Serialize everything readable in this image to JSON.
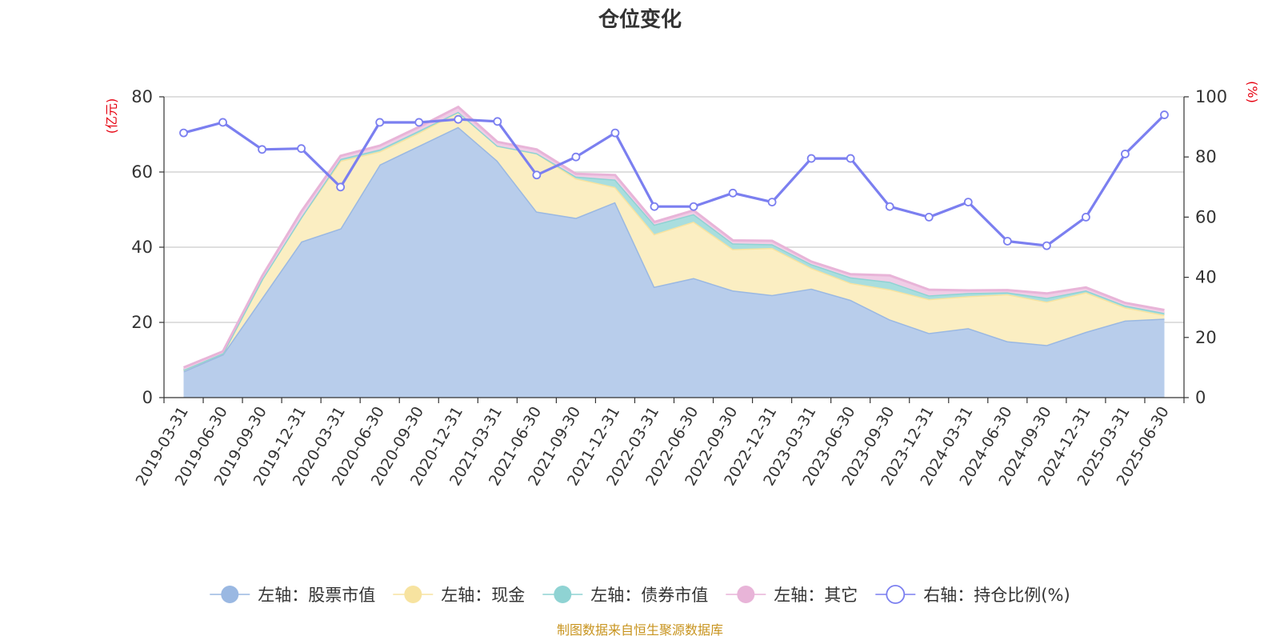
{
  "chart_data": {
    "type": "area",
    "title": "仓位变化",
    "left_axis_unit": "(亿元)",
    "right_axis_unit": "(%)",
    "source": "制图数据来自恒生聚源数据库",
    "categories": [
      "2019-03-31",
      "2019-06-30",
      "2019-09-30",
      "2019-12-31",
      "2020-03-31",
      "2020-06-30",
      "2020-09-30",
      "2020-12-31",
      "2021-03-31",
      "2021-06-30",
      "2021-09-30",
      "2021-12-31",
      "2022-03-31",
      "2022-06-30",
      "2022-09-30",
      "2022-12-31",
      "2023-03-31",
      "2023-06-30",
      "2023-09-30",
      "2023-12-31",
      "2024-03-31",
      "2024-06-30",
      "2024-09-30",
      "2024-12-31",
      "2025-03-31",
      "2025-06-30"
    ],
    "ylim_left": [
      0,
      80
    ],
    "yticks_left": [
      0,
      20,
      40,
      60,
      80
    ],
    "ylim_right": [
      0,
      100
    ],
    "yticks_right": [
      0,
      20,
      40,
      60,
      80,
      100
    ],
    "grid": true,
    "legend_position": "bottom",
    "series": [
      {
        "name": "左轴：股票市值",
        "axis": "left",
        "type": "area",
        "stack": true,
        "color": "#9ab8e2",
        "fill": "#b8cdeb",
        "values": [
          7.0,
          11.5,
          26.5,
          41.5,
          45.0,
          62.0,
          67.0,
          72.0,
          63.0,
          49.5,
          47.8,
          52.0,
          29.5,
          31.8,
          28.5,
          27.3,
          29.0,
          26.0,
          20.8,
          17.2,
          18.5,
          15.0,
          14.0,
          17.5,
          20.5,
          21.0
        ]
      },
      {
        "name": "左轴：现金",
        "axis": "left",
        "type": "area",
        "stack": true,
        "color": "#f7e3a0",
        "fill": "#fbeec2",
        "values": [
          0.4,
          0.3,
          5.0,
          6.5,
          18.0,
          3.5,
          3.5,
          4.0,
          4.0,
          15.5,
          10.5,
          4.0,
          14.0,
          15.0,
          11.0,
          12.5,
          5.5,
          4.5,
          8.0,
          9.0,
          8.5,
          12.5,
          11.5,
          10.5,
          3.5,
          1.0
        ]
      },
      {
        "name": "左轴：债券市值",
        "axis": "left",
        "type": "area",
        "stack": true,
        "color": "#8fd3d3",
        "fill": "#a9dede",
        "values": [
          0.0,
          0.0,
          0.0,
          0.0,
          0.5,
          0.5,
          0.5,
          0.0,
          0.0,
          0.0,
          0.5,
          2.0,
          2.5,
          2.0,
          1.5,
          1.0,
          1.0,
          1.5,
          2.0,
          1.0,
          0.8,
          0.5,
          1.0,
          0.5,
          0.5,
          0.5
        ]
      },
      {
        "name": "左轴：其它",
        "axis": "left",
        "type": "area",
        "stack": true,
        "color": "#e8b4d8",
        "fill": "#f0cde6",
        "values": [
          0.6,
          0.5,
          0.8,
          1.5,
          0.8,
          1.0,
          1.0,
          1.3,
          1.0,
          1.0,
          0.7,
          1.2,
          0.7,
          1.0,
          0.8,
          0.9,
          0.7,
          0.8,
          1.7,
          1.5,
          0.7,
          0.6,
          1.2,
          0.8,
          0.7,
          0.8
        ]
      },
      {
        "name": "右轴：持仓比例(%)",
        "axis": "right",
        "type": "line",
        "color": "#7b7ff0",
        "values": [
          88.0,
          91.5,
          82.5,
          82.8,
          70.0,
          91.5,
          91.5,
          92.5,
          91.8,
          74.0,
          80.0,
          88.0,
          63.5,
          63.5,
          68.0,
          65.0,
          79.5,
          79.5,
          63.5,
          60.0,
          65.0,
          52.0,
          50.5,
          60.0,
          81.0,
          94.0
        ]
      }
    ]
  }
}
